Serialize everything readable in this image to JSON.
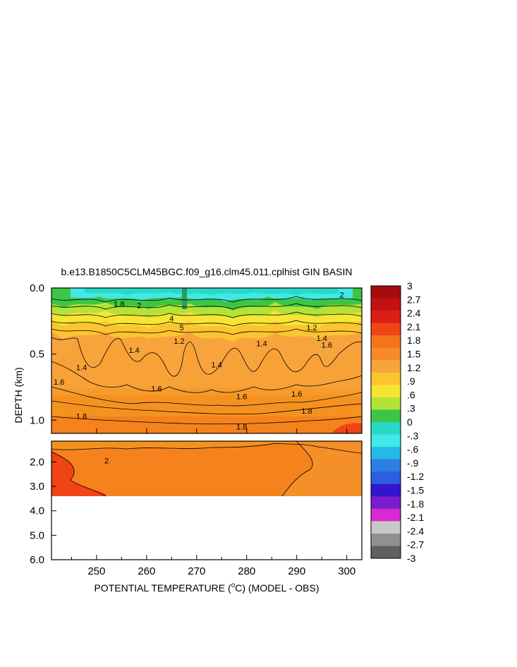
{
  "chart_data": {
    "type": "heatmap",
    "title": "b.e13.B1850C5CLM45BGC.f09_g16.clm45.011.cplhist GIN BASIN",
    "xlabel_prefix": "POTENTIAL TEMPERATURE (",
    "xlabel_degree": "o",
    "xlabel_suffix": "C) (MODEL - OBS)",
    "ylabel": "DEPTH (km)",
    "x_range": [
      241,
      303
    ],
    "x_ticks": [
      "250",
      "260",
      "270",
      "280",
      "290",
      "300"
    ],
    "x_tick_values": [
      250,
      260,
      270,
      280,
      290,
      300
    ],
    "upper_panel": {
      "y_range_km": [
        0.0,
        1.1
      ],
      "y_ticks": [
        "0.0",
        "0.5",
        "1.0"
      ],
      "y_tick_values": [
        0.0,
        0.5,
        1.0
      ]
    },
    "lower_panel": {
      "y_range_km": [
        1.15,
        6.0
      ],
      "y_ticks": [
        "2.0",
        "3.0",
        "4.0",
        "5.0",
        "6.0"
      ],
      "y_tick_values": [
        2.0,
        3.0,
        4.0,
        5.0,
        6.0
      ],
      "data_bottom_km": 3.35
    },
    "contour_labels": [
      {
        "text": "1.8",
        "x": 254.5,
        "y_km": 0.12
      },
      {
        "text": "2",
        "x": 258.5,
        "y_km": 0.13
      },
      {
        "text": "4",
        "x": 265.0,
        "y_km": 0.23
      },
      {
        "text": "5",
        "x": 267.0,
        "y_km": 0.3
      },
      {
        "text": "1.2",
        "x": 266.5,
        "y_km": 0.4
      },
      {
        "text": "1.4",
        "x": 257.5,
        "y_km": 0.47
      },
      {
        "text": "1.4",
        "x": 247.0,
        "y_km": 0.6
      },
      {
        "text": "1.6",
        "x": 242.5,
        "y_km": 0.71
      },
      {
        "text": "1.6",
        "x": 262.0,
        "y_km": 0.76
      },
      {
        "text": "1.6",
        "x": 279.0,
        "y_km": 0.82
      },
      {
        "text": "1.6",
        "x": 290.0,
        "y_km": 0.8
      },
      {
        "text": "1.8",
        "x": 247.0,
        "y_km": 0.97
      },
      {
        "text": "1.8",
        "x": 279.0,
        "y_km": 1.05
      },
      {
        "text": "1.8",
        "x": 292.0,
        "y_km": 0.93
      },
      {
        "text": "1.4",
        "x": 274.0,
        "y_km": 0.58
      },
      {
        "text": "1.4",
        "x": 283.0,
        "y_km": 0.42
      },
      {
        "text": "1.6",
        "x": 296.0,
        "y_km": 0.43
      },
      {
        "text": "1.2",
        "x": 293.0,
        "y_km": 0.3
      },
      {
        "text": "1.4",
        "x": 295.0,
        "y_km": 0.38
      },
      {
        "text": "2",
        "x": 299.0,
        "y_km": 0.05
      },
      {
        "text": "2",
        "x": 252.0,
        "y_km": 1.95
      }
    ],
    "colorbar": {
      "levels": [
        3,
        2.7,
        2.4,
        2.1,
        1.8,
        1.5,
        1.2,
        0.9,
        0.6,
        0.3,
        0,
        -0.3,
        -0.6,
        -0.9,
        -1.2,
        -1.5,
        -1.8,
        -2.1,
        -2.4,
        -2.7,
        -3
      ],
      "labels": [
        "3",
        "2.7",
        "2.4",
        "2.1",
        "1.8",
        "1.5",
        "1.2",
        ".9",
        ".6",
        ".3",
        "0",
        "-.3",
        "-.6",
        "-.9",
        "-1.2",
        "-1.5",
        "-1.8",
        "-2.1",
        "-2.4",
        "-2.7",
        "-3"
      ],
      "colors": [
        "#a50d0d",
        "#c21212",
        "#dc1e16",
        "#f04414",
        "#f5731d",
        "#f58a27",
        "#f8a43c",
        "#fcc530",
        "#f8e433",
        "#b2e336",
        "#3dc646",
        "#28d9c8",
        "#41e8e6",
        "#24b9e6",
        "#2c7fe0",
        "#2d5ee0",
        "#3314cf",
        "#7a1ccc",
        "#d82ad2",
        "#c8c8c8",
        "#909090",
        "#606060"
      ]
    }
  }
}
